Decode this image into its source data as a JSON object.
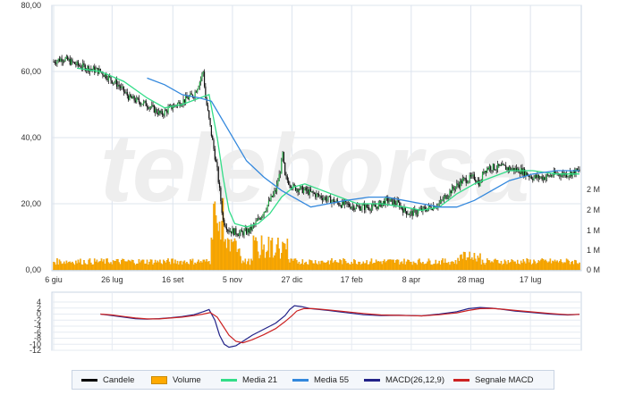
{
  "chart_data": [
    {
      "type": "candlestick",
      "y_axis_left": {
        "ticks": [
          "0,00",
          "20,00",
          "40,00",
          "60,00",
          "80,00"
        ],
        "values": [
          0,
          20,
          40,
          60,
          80
        ],
        "ylim": [
          0,
          80
        ]
      },
      "y_axis_right_volume": {
        "ticks": [
          "0 M",
          "1 M",
          "1 M",
          "2 M",
          "2 M"
        ]
      },
      "x_axis": {
        "ticks": [
          "6 giu",
          "26 lug",
          "16 set",
          "5 nov",
          "27 dic",
          "17 feb",
          "8 apr",
          "28 mag",
          "17 lug"
        ],
        "tick_index": [
          0,
          50,
          102,
          153,
          204,
          255,
          306,
          357,
          408
        ]
      },
      "grid": true,
      "watermark": "teleborsa",
      "series": [
        {
          "name": "Candele",
          "close_anchors": [
            [
              0,
              63
            ],
            [
              8,
              64
            ],
            [
              20,
              62
            ],
            [
              40,
              60
            ],
            [
              55,
              56
            ],
            [
              65,
              52
            ],
            [
              80,
              50
            ],
            [
              92,
              47
            ],
            [
              100,
              49
            ],
            [
              110,
              51
            ],
            [
              120,
              53
            ],
            [
              125,
              57
            ],
            [
              128,
              60
            ],
            [
              130,
              52
            ],
            [
              140,
              30
            ],
            [
              145,
              15
            ],
            [
              150,
              12
            ],
            [
              160,
              11
            ],
            [
              168,
              12
            ],
            [
              175,
              15
            ],
            [
              182,
              19
            ],
            [
              190,
              24
            ],
            [
              194,
              30
            ],
            [
              196,
              35
            ],
            [
              198,
              28
            ],
            [
              205,
              25
            ],
            [
              215,
              24
            ],
            [
              230,
              22
            ],
            [
              245,
              20
            ],
            [
              260,
              19
            ],
            [
              275,
              19
            ],
            [
              285,
              21
            ],
            [
              295,
              20
            ],
            [
              300,
              18
            ],
            [
              305,
              17
            ],
            [
              315,
              18
            ],
            [
              330,
              20
            ],
            [
              340,
              24
            ],
            [
              350,
              27
            ],
            [
              360,
              28
            ],
            [
              365,
              26
            ],
            [
              368,
              30
            ],
            [
              372,
              31
            ],
            [
              385,
              31
            ],
            [
              400,
              30
            ],
            [
              410,
              28
            ],
            [
              420,
              28
            ],
            [
              430,
              29
            ],
            [
              440,
              29
            ],
            [
              450,
              30
            ]
          ]
        },
        {
          "name": "Media 21",
          "color": "#33dd88",
          "points": [
            [
              20,
              61
            ],
            [
              40,
              60
            ],
            [
              60,
              57
            ],
            [
              80,
              52
            ],
            [
              95,
              49
            ],
            [
              110,
              50
            ],
            [
              125,
              52
            ],
            [
              133,
              53
            ],
            [
              140,
              40
            ],
            [
              145,
              28
            ],
            [
              150,
              18
            ],
            [
              155,
              14
            ],
            [
              165,
              13
            ],
            [
              175,
              14
            ],
            [
              185,
              17
            ],
            [
              195,
              22
            ],
            [
              205,
              25
            ],
            [
              215,
              26
            ],
            [
              230,
              24
            ],
            [
              245,
              22
            ],
            [
              260,
              20
            ],
            [
              280,
              20
            ],
            [
              300,
              19
            ],
            [
              315,
              18
            ],
            [
              330,
              19
            ],
            [
              345,
              23
            ],
            [
              360,
              26
            ],
            [
              375,
              28
            ],
            [
              390,
              30
            ],
            [
              410,
              30
            ],
            [
              430,
              29
            ],
            [
              450,
              29
            ]
          ]
        },
        {
          "name": "Media 55",
          "color": "#3388dd",
          "points": [
            [
              80,
              58
            ],
            [
              95,
              56
            ],
            [
              110,
              53
            ],
            [
              125,
              52
            ],
            [
              135,
              51
            ],
            [
              150,
              42
            ],
            [
              165,
              33
            ],
            [
              180,
              28
            ],
            [
              195,
              24
            ],
            [
              210,
              21
            ],
            [
              220,
              19
            ],
            [
              235,
              20
            ],
            [
              250,
              21
            ],
            [
              270,
              22
            ],
            [
              285,
              22
            ],
            [
              300,
              21
            ],
            [
              315,
              20
            ],
            [
              330,
              19
            ],
            [
              345,
              19
            ],
            [
              360,
              21
            ],
            [
              375,
              24
            ],
            [
              390,
              27
            ],
            [
              410,
              29
            ],
            [
              430,
              30
            ],
            [
              450,
              30
            ]
          ]
        },
        {
          "name": "Volume",
          "color": "#ffaa00",
          "border": "#c98a00"
        }
      ]
    },
    {
      "type": "line",
      "y_axis": {
        "ticks": [
          "4",
          "2",
          "0",
          "-2",
          "-4",
          "-6",
          "-8",
          "-10",
          "-12"
        ],
        "values": [
          4,
          2,
          0,
          -2,
          -4,
          -6,
          -8,
          -10,
          -12
        ],
        "ylim": [
          -12,
          4
        ]
      },
      "grid": true,
      "series": [
        {
          "name": "MACD(26,12,9)",
          "color": "#222288",
          "points": [
            [
              40,
              0
            ],
            [
              50,
              -0.5
            ],
            [
              60,
              -1
            ],
            [
              70,
              -1.5
            ],
            [
              80,
              -1.7
            ],
            [
              90,
              -1.5
            ],
            [
              100,
              -1.2
            ],
            [
              110,
              -0.8
            ],
            [
              120,
              -0.2
            ],
            [
              128,
              0.8
            ],
            [
              133,
              1.5
            ],
            [
              138,
              -2
            ],
            [
              142,
              -7
            ],
            [
              146,
              -10
            ],
            [
              150,
              -11
            ],
            [
              156,
              -10.5
            ],
            [
              162,
              -9
            ],
            [
              170,
              -7
            ],
            [
              180,
              -5
            ],
            [
              190,
              -3
            ],
            [
              198,
              -0.5
            ],
            [
              202,
              1.5
            ],
            [
              206,
              2.8
            ],
            [
              212,
              2.5
            ],
            [
              220,
              1.8
            ],
            [
              235,
              1.2
            ],
            [
              250,
              0.5
            ],
            [
              265,
              -0.2
            ],
            [
              280,
              -0.5
            ],
            [
              295,
              -0.4
            ],
            [
              305,
              -0.5
            ],
            [
              315,
              -0.6
            ],
            [
              330,
              0
            ],
            [
              345,
              0.8
            ],
            [
              355,
              1.8
            ],
            [
              365,
              2.2
            ],
            [
              375,
              2
            ],
            [
              385,
              1.5
            ],
            [
              395,
              1
            ],
            [
              410,
              0.5
            ],
            [
              425,
              0
            ],
            [
              440,
              -0.3
            ],
            [
              450,
              -0.1
            ]
          ]
        },
        {
          "name": "Segnale MACD",
          "color": "#cc2222",
          "points": [
            [
              40,
              0
            ],
            [
              50,
              -0.3
            ],
            [
              60,
              -0.8
            ],
            [
              70,
              -1.3
            ],
            [
              80,
              -1.6
            ],
            [
              90,
              -1.6
            ],
            [
              100,
              -1.3
            ],
            [
              110,
              -1
            ],
            [
              120,
              -0.5
            ],
            [
              128,
              0
            ],
            [
              134,
              0.5
            ],
            [
              140,
              -1
            ],
            [
              145,
              -4
            ],
            [
              150,
              -7
            ],
            [
              156,
              -9
            ],
            [
              162,
              -9.5
            ],
            [
              170,
              -8.5
            ],
            [
              180,
              -6.8
            ],
            [
              190,
              -4.8
            ],
            [
              198,
              -2.5
            ],
            [
              204,
              -0.5
            ],
            [
              208,
              1
            ],
            [
              214,
              1.8
            ],
            [
              222,
              1.8
            ],
            [
              235,
              1.4
            ],
            [
              250,
              0.8
            ],
            [
              265,
              0.2
            ],
            [
              280,
              -0.3
            ],
            [
              295,
              -0.4
            ],
            [
              305,
              -0.5
            ],
            [
              315,
              -0.6
            ],
            [
              330,
              -0.2
            ],
            [
              345,
              0.4
            ],
            [
              355,
              1.2
            ],
            [
              365,
              1.8
            ],
            [
              375,
              1.9
            ],
            [
              385,
              1.6
            ],
            [
              395,
              1.2
            ],
            [
              410,
              0.7
            ],
            [
              425,
              0.2
            ],
            [
              440,
              -0.2
            ],
            [
              450,
              -0.1
            ]
          ]
        }
      ]
    }
  ]
}
